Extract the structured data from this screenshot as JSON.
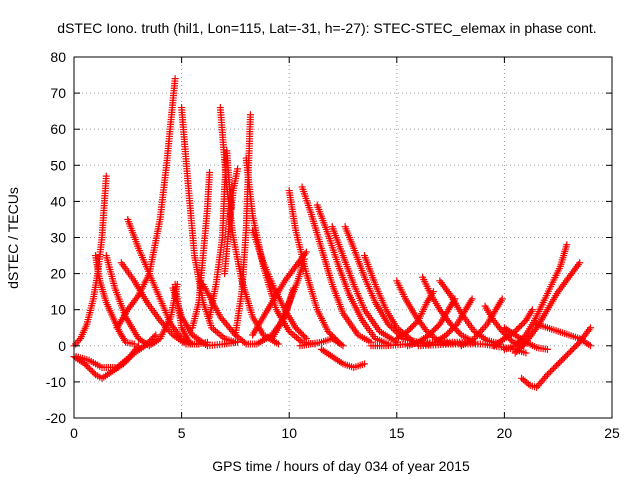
{
  "chart_data": {
    "type": "scatter",
    "title": "dSTEC Iono. truth (hil1, Lon=115, Lat=-31, h=-27): STEC-STEC_elemax in phase cont.",
    "xlabel": "GPS time / hours of day 034 of year 2015",
    "ylabel": "dSTEC  / TECUs",
    "xlim": [
      0,
      25
    ],
    "ylim": [
      -20,
      80
    ],
    "xticks": [
      0,
      5,
      10,
      15,
      20,
      25
    ],
    "yticks": [
      -20,
      -10,
      0,
      10,
      20,
      30,
      40,
      50,
      60,
      70,
      80
    ],
    "grid": true,
    "marker": "plus",
    "color": "#ff0000",
    "series": [
      {
        "points": [
          [
            0.0,
            0
          ],
          [
            0.3,
            2
          ],
          [
            0.6,
            6
          ],
          [
            0.9,
            13
          ],
          [
            1.1,
            20
          ],
          [
            1.3,
            30
          ],
          [
            1.5,
            47
          ]
        ]
      },
      {
        "points": [
          [
            1.0,
            25
          ],
          [
            1.2,
            18
          ],
          [
            1.5,
            12
          ],
          [
            1.8,
            8
          ],
          [
            2.1,
            4
          ],
          [
            2.4,
            1
          ],
          [
            2.8,
            0.5
          ]
        ]
      },
      {
        "points": [
          [
            1.5,
            25
          ],
          [
            1.9,
            16
          ],
          [
            2.4,
            8
          ],
          [
            3.0,
            2
          ],
          [
            3.5,
            0
          ],
          [
            4.0,
            2
          ],
          [
            4.5,
            8
          ],
          [
            4.8,
            17
          ]
        ]
      },
      {
        "points": [
          [
            2.0,
            5
          ],
          [
            2.5,
            10
          ],
          [
            3.0,
            14
          ],
          [
            3.5,
            20
          ],
          [
            4.0,
            35
          ],
          [
            4.3,
            50
          ],
          [
            4.5,
            62
          ],
          [
            4.7,
            74
          ]
        ]
      },
      {
        "points": [
          [
            2.5,
            35
          ],
          [
            3.0,
            27
          ],
          [
            3.5,
            20
          ],
          [
            4.0,
            13
          ],
          [
            4.5,
            6
          ],
          [
            5.0,
            2
          ],
          [
            5.5,
            0.5
          ]
        ]
      },
      {
        "points": [
          [
            2.2,
            23
          ],
          [
            2.8,
            18
          ],
          [
            3.4,
            12
          ],
          [
            4.0,
            7
          ],
          [
            4.6,
            3
          ],
          [
            5.2,
            0.5
          ],
          [
            5.8,
            0.5
          ]
        ]
      },
      {
        "points": [
          [
            4.7,
            17
          ],
          [
            5.0,
            5
          ],
          [
            5.4,
            0.5
          ],
          [
            5.8,
            0.5
          ],
          [
            6.2,
            1
          ]
        ]
      },
      {
        "points": [
          [
            5.0,
            66
          ],
          [
            5.3,
            45
          ],
          [
            5.6,
            25
          ],
          [
            6.0,
            12
          ],
          [
            6.4,
            5
          ],
          [
            7.0,
            2
          ],
          [
            7.5,
            1
          ]
        ]
      },
      {
        "points": [
          [
            4.6,
            16
          ],
          [
            5.0,
            8
          ],
          [
            5.5,
            3
          ],
          [
            6.2,
            0
          ],
          [
            7.0,
            0.5
          ],
          [
            7.6,
            1
          ]
        ]
      },
      {
        "points": [
          [
            5.5,
            5
          ],
          [
            5.8,
            12
          ],
          [
            6.0,
            25
          ],
          [
            6.2,
            38
          ],
          [
            6.3,
            48
          ]
        ]
      },
      {
        "points": [
          [
            6.3,
            8
          ],
          [
            6.6,
            17
          ],
          [
            6.9,
            30
          ],
          [
            7.0,
            44
          ],
          [
            7.1,
            54
          ],
          [
            7.3,
            38
          ]
        ]
      },
      {
        "points": [
          [
            6.8,
            66
          ],
          [
            7.1,
            44
          ],
          [
            7.4,
            30
          ],
          [
            7.8,
            18
          ],
          [
            8.3,
            8
          ],
          [
            8.8,
            3
          ],
          [
            9.5,
            0.5
          ]
        ]
      },
      {
        "points": [
          [
            7.0,
            20
          ],
          [
            7.2,
            33
          ],
          [
            7.4,
            43
          ],
          [
            7.6,
            49
          ]
        ]
      },
      {
        "points": [
          [
            7.5,
            3
          ],
          [
            7.8,
            15
          ],
          [
            8.0,
            32
          ],
          [
            8.1,
            48
          ],
          [
            8.2,
            64
          ]
        ]
      },
      {
        "points": [
          [
            8.0,
            52
          ],
          [
            8.3,
            36
          ],
          [
            8.8,
            22
          ],
          [
            9.4,
            10
          ],
          [
            10.0,
            4
          ],
          [
            10.6,
            1
          ],
          [
            11.2,
            0.5
          ]
        ]
      },
      {
        "points": [
          [
            8.3,
            32
          ],
          [
            8.8,
            23
          ],
          [
            9.3,
            16
          ],
          [
            9.8,
            10
          ],
          [
            10.3,
            5
          ],
          [
            10.8,
            2
          ]
        ]
      },
      {
        "points": [
          [
            6.0,
            17
          ],
          [
            6.8,
            8
          ],
          [
            7.5,
            3
          ],
          [
            8.0,
            0.5
          ],
          [
            8.5,
            0.5
          ],
          [
            9.2,
            3
          ],
          [
            9.8,
            8
          ],
          [
            10.2,
            16
          ]
        ]
      },
      {
        "points": [
          [
            8.3,
            3
          ],
          [
            8.8,
            8
          ],
          [
            9.3,
            13
          ],
          [
            9.8,
            18
          ],
          [
            10.3,
            22
          ],
          [
            10.8,
            26
          ]
        ]
      },
      {
        "points": [
          [
            9.2,
            2
          ],
          [
            9.6,
            6
          ],
          [
            10.0,
            12
          ],
          [
            10.4,
            18
          ],
          [
            10.7,
            24
          ]
        ]
      },
      {
        "points": [
          [
            10.0,
            43
          ],
          [
            10.3,
            32
          ],
          [
            10.8,
            20
          ],
          [
            11.3,
            10
          ],
          [
            11.8,
            4
          ],
          [
            12.3,
            1
          ]
        ]
      },
      {
        "points": [
          [
            10.6,
            44
          ],
          [
            11.0,
            37
          ],
          [
            11.5,
            27
          ],
          [
            12.0,
            17
          ],
          [
            12.5,
            9
          ],
          [
            13.2,
            3
          ],
          [
            13.8,
            1
          ]
        ]
      },
      {
        "points": [
          [
            11.3,
            39
          ],
          [
            11.8,
            31
          ],
          [
            12.3,
            22
          ],
          [
            12.8,
            14
          ],
          [
            13.4,
            7
          ],
          [
            14.0,
            2
          ],
          [
            14.6,
            0.5
          ]
        ]
      },
      {
        "points": [
          [
            12.0,
            33
          ],
          [
            12.5,
            25
          ],
          [
            13.0,
            17
          ],
          [
            13.5,
            10
          ],
          [
            14.2,
            4
          ],
          [
            15.0,
            1
          ]
        ]
      },
      {
        "points": [
          [
            12.6,
            33
          ],
          [
            13.0,
            27
          ],
          [
            13.5,
            19
          ],
          [
            14.0,
            12
          ],
          [
            14.6,
            6
          ],
          [
            15.3,
            2
          ],
          [
            16.0,
            1
          ]
        ]
      },
      {
        "points": [
          [
            13.5,
            25
          ],
          [
            14.0,
            17
          ],
          [
            14.5,
            10
          ],
          [
            15.0,
            5
          ],
          [
            15.8,
            1
          ],
          [
            16.5,
            0.5
          ]
        ]
      },
      {
        "points": [
          [
            11.5,
            -1
          ],
          [
            12.0,
            -3
          ],
          [
            12.5,
            -5
          ],
          [
            13.0,
            -6
          ],
          [
            13.5,
            -5
          ]
        ]
      },
      {
        "points": [
          [
            10.5,
            0
          ],
          [
            11.0,
            0.5
          ],
          [
            11.5,
            1
          ],
          [
            12.0,
            2
          ],
          [
            12.5,
            0
          ]
        ]
      },
      {
        "points": [
          [
            0.0,
            -3
          ],
          [
            0.5,
            -5
          ],
          [
            1.0,
            -8
          ],
          [
            1.3,
            -9
          ],
          [
            1.8,
            -7
          ],
          [
            2.3,
            -5
          ],
          [
            2.8,
            -2
          ],
          [
            3.3,
            0
          ],
          [
            3.8,
            3
          ]
        ]
      },
      {
        "points": [
          [
            0.1,
            -3
          ],
          [
            0.7,
            -4
          ],
          [
            1.3,
            -6
          ],
          [
            2.0,
            -6
          ],
          [
            2.6,
            -3
          ],
          [
            3.0,
            0
          ]
        ]
      },
      {
        "points": [
          [
            15.0,
            18
          ],
          [
            15.4,
            13
          ],
          [
            15.9,
            8
          ],
          [
            16.4,
            4
          ],
          [
            17.0,
            1
          ],
          [
            17.6,
            0.5
          ]
        ]
      },
      {
        "points": [
          [
            15.0,
            2
          ],
          [
            15.5,
            4
          ],
          [
            16.0,
            7
          ],
          [
            16.4,
            12
          ],
          [
            16.7,
            15
          ]
        ]
      },
      {
        "points": [
          [
            16.2,
            19
          ],
          [
            16.6,
            14
          ],
          [
            17.0,
            10
          ],
          [
            17.5,
            6
          ],
          [
            18.0,
            3
          ],
          [
            18.6,
            1
          ]
        ]
      },
      {
        "points": [
          [
            15.5,
            0
          ],
          [
            16.0,
            1
          ],
          [
            16.5,
            3
          ],
          [
            17.0,
            6
          ],
          [
            17.4,
            10
          ],
          [
            17.7,
            13
          ]
        ]
      },
      {
        "points": [
          [
            17.0,
            18
          ],
          [
            17.5,
            14
          ],
          [
            18.0,
            9
          ],
          [
            18.6,
            4
          ],
          [
            19.2,
            1.5
          ],
          [
            19.8,
            0.5
          ]
        ]
      },
      {
        "points": [
          [
            16.8,
            1
          ],
          [
            17.3,
            3
          ],
          [
            17.8,
            6
          ],
          [
            18.2,
            10
          ],
          [
            18.5,
            13
          ]
        ]
      },
      {
        "points": [
          [
            18.0,
            0
          ],
          [
            18.6,
            2
          ],
          [
            19.2,
            6
          ],
          [
            19.6,
            10
          ],
          [
            19.9,
            13
          ]
        ]
      },
      {
        "points": [
          [
            19.1,
            11
          ],
          [
            19.5,
            7
          ],
          [
            19.9,
            4
          ],
          [
            20.4,
            1
          ],
          [
            20.9,
            0
          ]
        ]
      },
      {
        "points": [
          [
            16.0,
            0
          ],
          [
            17.5,
            0.5
          ],
          [
            19.0,
            0.5
          ],
          [
            20.5,
            -1
          ],
          [
            21.0,
            -2
          ]
        ]
      },
      {
        "points": [
          [
            19.5,
            0
          ],
          [
            20.0,
            2
          ],
          [
            20.5,
            4
          ],
          [
            21.0,
            7
          ],
          [
            21.3,
            10
          ]
        ]
      },
      {
        "points": [
          [
            20.0,
            -1
          ],
          [
            20.5,
            0
          ],
          [
            21.0,
            3
          ],
          [
            21.4,
            7
          ],
          [
            21.8,
            12
          ],
          [
            22.2,
            17
          ],
          [
            22.6,
            22
          ],
          [
            22.9,
            28
          ]
        ]
      },
      {
        "points": [
          [
            20.5,
            -2
          ],
          [
            21.0,
            1
          ],
          [
            21.5,
            5
          ],
          [
            22.0,
            10
          ],
          [
            22.5,
            15
          ],
          [
            23.0,
            19
          ],
          [
            23.5,
            23
          ]
        ]
      },
      {
        "points": [
          [
            20.8,
            -9
          ],
          [
            21.2,
            -11
          ],
          [
            21.5,
            -11.5
          ],
          [
            22.0,
            -8
          ],
          [
            22.5,
            -5
          ],
          [
            23.0,
            -2
          ],
          [
            23.5,
            1
          ],
          [
            24.0,
            5
          ]
        ]
      },
      {
        "points": [
          [
            21.5,
            6
          ],
          [
            22.0,
            5
          ],
          [
            22.5,
            4
          ],
          [
            23.0,
            3
          ],
          [
            23.5,
            2
          ],
          [
            24.0,
            0
          ]
        ]
      },
      {
        "points": [
          [
            20.0,
            5
          ],
          [
            20.5,
            3
          ],
          [
            21.0,
            1
          ],
          [
            21.5,
            -0.5
          ],
          [
            22.0,
            -1
          ]
        ]
      },
      {
        "points": [
          [
            13.8,
            0
          ],
          [
            14.5,
            0
          ],
          [
            15.5,
            0.5
          ],
          [
            17.0,
            1
          ],
          [
            18.5,
            1
          ]
        ]
      }
    ]
  }
}
